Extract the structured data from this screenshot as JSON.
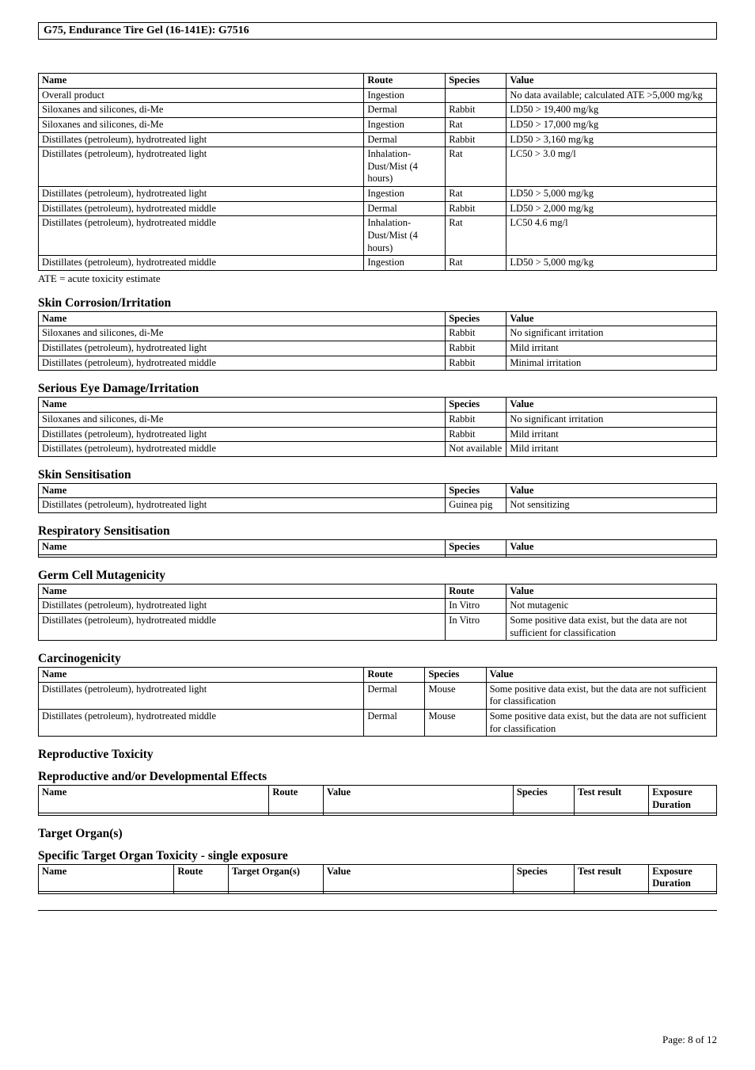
{
  "title": "G75, Endurance Tire Gel (16-141E): G7516",
  "page_footer": "Page: 8 of 12",
  "toxicity_table": {
    "headers": [
      "Name",
      "Route",
      "Species",
      "Value"
    ],
    "col_widths": [
      "48%",
      "12%",
      "9%",
      "31%"
    ],
    "rows": [
      [
        "Overall product",
        "Ingestion",
        "",
        "No data available; calculated ATE >5,000 mg/kg"
      ],
      [
        "Siloxanes and silicones, di-Me",
        "Dermal",
        "Rabbit",
        "LD50 > 19,400 mg/kg"
      ],
      [
        "Siloxanes and silicones, di-Me",
        "Ingestion",
        "Rat",
        "LD50 > 17,000 mg/kg"
      ],
      [
        "Distillates (petroleum), hydrotreated light",
        "Dermal",
        "Rabbit",
        "LD50 > 3,160 mg/kg"
      ],
      [
        "Distillates (petroleum), hydrotreated light",
        "Inhalation-Dust/Mist (4 hours)",
        "Rat",
        "LC50 > 3.0 mg/l"
      ],
      [
        "Distillates (petroleum), hydrotreated light",
        "Ingestion",
        "Rat",
        "LD50 > 5,000 mg/kg"
      ],
      [
        "Distillates (petroleum), hydrotreated middle",
        "Dermal",
        "Rabbit",
        "LD50 > 2,000 mg/kg"
      ],
      [
        "Distillates (petroleum), hydrotreated middle",
        "Inhalation-Dust/Mist (4 hours)",
        "Rat",
        "LC50  4.6 mg/l"
      ],
      [
        "Distillates (petroleum), hydrotreated middle",
        "Ingestion",
        "Rat",
        "LD50 > 5,000 mg/kg"
      ]
    ],
    "footnote": "ATE = acute toxicity estimate"
  },
  "skin_corrosion": {
    "heading": "Skin Corrosion/Irritation",
    "headers": [
      "Name",
      "Species",
      "Value"
    ],
    "col_widths": [
      "60%",
      "9%",
      "31%"
    ],
    "rows": [
      [
        "Siloxanes and silicones, di-Me",
        "Rabbit",
        "No significant irritation"
      ],
      [
        "Distillates (petroleum), hydrotreated light",
        "Rabbit",
        "Mild irritant"
      ],
      [
        "Distillates (petroleum), hydrotreated middle",
        "Rabbit",
        "Minimal irritation"
      ]
    ]
  },
  "eye_damage": {
    "heading": "Serious Eye Damage/Irritation",
    "headers": [
      "Name",
      "Species",
      "Value"
    ],
    "col_widths": [
      "60%",
      "9%",
      "31%"
    ],
    "rows": [
      [
        "Siloxanes and silicones, di-Me",
        "Rabbit",
        "No significant irritation"
      ],
      [
        "Distillates (petroleum), hydrotreated light",
        "Rabbit",
        "Mild irritant"
      ],
      [
        "Distillates (petroleum), hydrotreated middle",
        "Not available",
        "Mild irritant"
      ]
    ]
  },
  "skin_sens": {
    "heading": "Skin Sensitisation",
    "headers": [
      "Name",
      "Species",
      "Value"
    ],
    "col_widths": [
      "60%",
      "9%",
      "31%"
    ],
    "rows": [
      [
        "Distillates (petroleum), hydrotreated light",
        "Guinea pig",
        "Not sensitizing"
      ]
    ]
  },
  "resp_sens": {
    "heading": "Respiratory Sensitisation",
    "headers": [
      "Name",
      "Species",
      "Value"
    ],
    "col_widths": [
      "60%",
      "9%",
      "31%"
    ],
    "rows": [
      [
        "",
        "",
        ""
      ]
    ]
  },
  "germ_cell": {
    "heading": "Germ Cell Mutagenicity",
    "headers": [
      "Name",
      "Route",
      "Value"
    ],
    "col_widths": [
      "60%",
      "9%",
      "31%"
    ],
    "rows": [
      [
        "Distillates (petroleum), hydrotreated light",
        "In Vitro",
        "Not mutagenic"
      ],
      [
        "Distillates (petroleum), hydrotreated middle",
        "In Vitro",
        "Some positive data exist, but the data are not sufficient for classification"
      ]
    ]
  },
  "carcinogenicity": {
    "heading": "Carcinogenicity",
    "headers": [
      "Name",
      "Route",
      "Species",
      "Value"
    ],
    "col_widths": [
      "48%",
      "9%",
      "9%",
      "34%"
    ],
    "rows": [
      [
        "Distillates (petroleum), hydrotreated light",
        "Dermal",
        "Mouse",
        "Some positive data exist, but the data are not sufficient for classification"
      ],
      [
        "Distillates (petroleum), hydrotreated middle",
        "Dermal",
        "Mouse",
        "Some positive data exist, but the data are not sufficient for classification"
      ]
    ]
  },
  "repro_tox": {
    "heading": "Reproductive Toxicity",
    "subheading": "Reproductive and/or Developmental Effects",
    "headers": [
      "Name",
      "Route",
      "Value",
      "Species",
      "Test result",
      "Exposure Duration"
    ],
    "col_widths": [
      "34%",
      "8%",
      "28%",
      "9%",
      "11%",
      "10%"
    ],
    "rows": [
      [
        "",
        "",
        "",
        "",
        "",
        ""
      ]
    ]
  },
  "target_organs": {
    "heading": "Target Organ(s)",
    "subheading": "Specific Target Organ Toxicity - single exposure",
    "headers": [
      "Name",
      "Route",
      "Target Organ(s)",
      "Value",
      "Species",
      "Test result",
      "Exposure Duration"
    ],
    "col_widths": [
      "20%",
      "8%",
      "14%",
      "28%",
      "9%",
      "11%",
      "10%"
    ],
    "rows": [
      [
        "",
        "",
        "",
        "",
        "",
        "",
        ""
      ]
    ]
  }
}
